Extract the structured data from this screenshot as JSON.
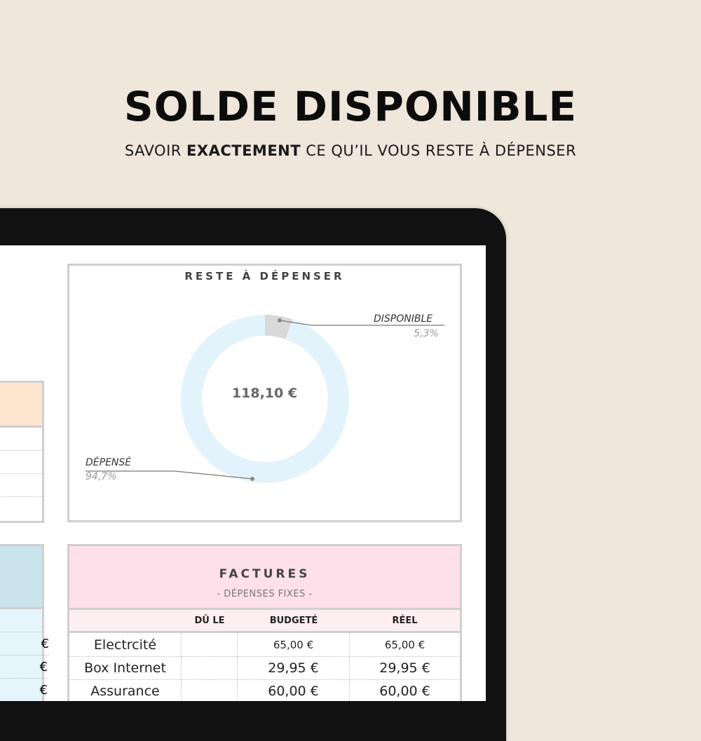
{
  "heading": {
    "title": "SOLDE DISPONIBLE",
    "subtitle_pre": "SAVOIR ",
    "subtitle_bold": "EXACTEMENT",
    "subtitle_post": " CE QU’IL VOUS RESTE À DÉPENSER"
  },
  "remaining": {
    "title": "RESTE À DÉPENSER",
    "center_value": "118,10 €",
    "chart_data": {
      "type": "pie",
      "donut": true,
      "categories": [
        "DISPONIBLE",
        "DÉPENSÉ"
      ],
      "values": [
        5.3,
        94.7
      ],
      "labels": [
        "5,3%",
        "94,7%"
      ],
      "colors": [
        "#d9d9d9",
        "#e3f3fb"
      ]
    }
  },
  "left_cards": {
    "blue_values": [
      "€",
      "€",
      "€"
    ],
    "colors": {
      "orange": "#fde5cf",
      "blue_header": "#c9e4ea",
      "blue_rows": "#e6f5fb"
    }
  },
  "bills": {
    "title": "FACTURES",
    "subtitle": "- DÉPENSES FIXES -",
    "columns": [
      "",
      "DÛ LE",
      "BUDGETÉ",
      "RÉEL"
    ],
    "rows": [
      {
        "name": "Electrcité",
        "due": "",
        "budget": "65,00 €",
        "actual": "65,00 €"
      },
      {
        "name": "Box Internet",
        "due": "",
        "budget": "29,95 €",
        "actual": "29,95 €"
      },
      {
        "name": "Assurance",
        "due": "",
        "budget": "60,00 €",
        "actual": "60,00 €"
      }
    ],
    "colors": {
      "header": "#fde0ea",
      "columns": "#fdeef2"
    }
  }
}
